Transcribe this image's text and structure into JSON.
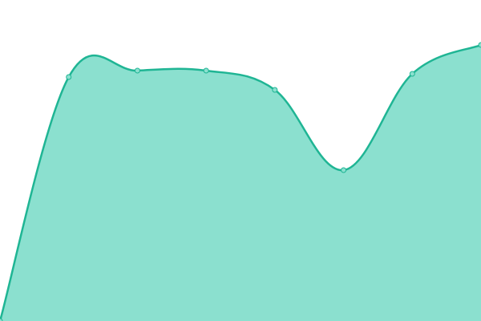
{
  "chart_data": {
    "type": "area",
    "categories": [
      null,
      null,
      null,
      null,
      null,
      null,
      null,
      null
    ],
    "series": [
      {
        "color": "#1fb594",
        "fill": "#8be0cf",
        "values": [
          0,
          76,
          78,
          78,
          72,
          47,
          77,
          86
        ]
      }
    ],
    "ylim": [
      0,
      100
    ]
  }
}
